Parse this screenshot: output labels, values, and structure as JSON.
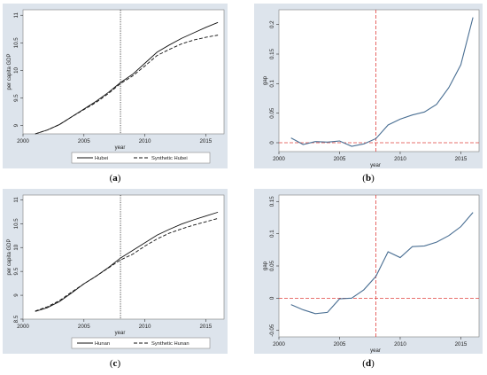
{
  "captions": [
    "a",
    "b",
    "c",
    "d"
  ],
  "chart_data": [
    {
      "type": "line",
      "panel": "a",
      "xlabel": "year",
      "ylabel": "per capita GDP",
      "xlim": [
        2000,
        2016.5
      ],
      "ylim": [
        8.85,
        11.1
      ],
      "xticks": [
        2000,
        2005,
        2010,
        2015
      ],
      "yticks": [
        9,
        9.5,
        10,
        10.5,
        11
      ],
      "vline": 2008,
      "legend_position": "bottom",
      "x": [
        2001,
        2002,
        2003,
        2004,
        2005,
        2006,
        2007,
        2008,
        2009,
        2010,
        2011,
        2012,
        2013,
        2014,
        2015,
        2016
      ],
      "series": [
        {
          "name": "Hubei",
          "style": "solid",
          "values": [
            8.85,
            8.92,
            9.02,
            9.16,
            9.3,
            9.44,
            9.6,
            9.78,
            9.93,
            10.13,
            10.33,
            10.46,
            10.58,
            10.68,
            10.78,
            10.87
          ]
        },
        {
          "name": "Synthetic Hubei",
          "style": "dashed",
          "values": [
            8.85,
            8.92,
            9.02,
            9.16,
            9.29,
            9.42,
            9.58,
            9.76,
            9.9,
            10.08,
            10.27,
            10.38,
            10.48,
            10.55,
            10.6,
            10.64
          ]
        }
      ]
    },
    {
      "type": "line",
      "panel": "b",
      "xlabel": "year",
      "ylabel": "gap",
      "xlim": [
        2000,
        2016.5
      ],
      "ylim": [
        -0.015,
        0.225
      ],
      "xticks": [
        2000,
        2005,
        2010,
        2015
      ],
      "yticks": [
        0,
        0.05,
        0.1,
        0.15,
        0.2
      ],
      "vline": 2008,
      "hline": 0,
      "x": [
        2001,
        2002,
        2003,
        2004,
        2005,
        2006,
        2007,
        2008,
        2009,
        2010,
        2011,
        2012,
        2013,
        2014,
        2015,
        2016
      ],
      "series": [
        {
          "name": "",
          "style": "solid",
          "values": [
            0.008,
            -0.003,
            0.002,
            0.001,
            0.003,
            -0.006,
            -0.002,
            0.007,
            0.03,
            0.04,
            0.047,
            0.052,
            0.065,
            0.093,
            0.132,
            0.212
          ]
        }
      ]
    },
    {
      "type": "line",
      "panel": "c",
      "xlabel": "year",
      "ylabel": "per capita GDP",
      "xlim": [
        2000,
        2016.5
      ],
      "ylim": [
        8.5,
        11.1
      ],
      "xticks": [
        2000,
        2005,
        2010,
        2015
      ],
      "yticks": [
        8.5,
        9,
        9.5,
        10,
        10.5,
        11
      ],
      "vline": 2008,
      "legend_position": "bottom",
      "x": [
        2001,
        2002,
        2003,
        2004,
        2005,
        2006,
        2007,
        2008,
        2009,
        2010,
        2011,
        2012,
        2013,
        2014,
        2015,
        2016
      ],
      "series": [
        {
          "name": "Hunan",
          "style": "solid",
          "values": [
            8.66,
            8.74,
            8.87,
            9.05,
            9.24,
            9.4,
            9.58,
            9.78,
            9.94,
            10.1,
            10.26,
            10.38,
            10.49,
            10.58,
            10.66,
            10.74
          ]
        },
        {
          "name": "Synthetic Hunan",
          "style": "dashed",
          "values": [
            8.67,
            8.76,
            8.89,
            9.07,
            9.24,
            9.4,
            9.57,
            9.74,
            9.86,
            10.03,
            10.18,
            10.3,
            10.39,
            10.47,
            10.54,
            10.61
          ]
        }
      ]
    },
    {
      "type": "line",
      "panel": "d",
      "xlabel": "year",
      "ylabel": "gap",
      "xlim": [
        2000,
        2016.5
      ],
      "ylim": [
        -0.06,
        0.16
      ],
      "xticks": [
        2000,
        2005,
        2010,
        2015
      ],
      "yticks": [
        -0.05,
        0,
        0.05,
        0.1,
        0.15
      ],
      "vline": 2008,
      "hline": 0,
      "x": [
        2001,
        2002,
        2003,
        2004,
        2005,
        2006,
        2007,
        2008,
        2009,
        2010,
        2011,
        2012,
        2013,
        2014,
        2015,
        2016
      ],
      "series": [
        {
          "name": "",
          "style": "solid",
          "values": [
            -0.01,
            -0.018,
            -0.024,
            -0.022,
            -0.001,
            0.0,
            0.013,
            0.034,
            0.072,
            0.063,
            0.08,
            0.081,
            0.087,
            0.097,
            0.111,
            0.133
          ]
        }
      ]
    }
  ]
}
